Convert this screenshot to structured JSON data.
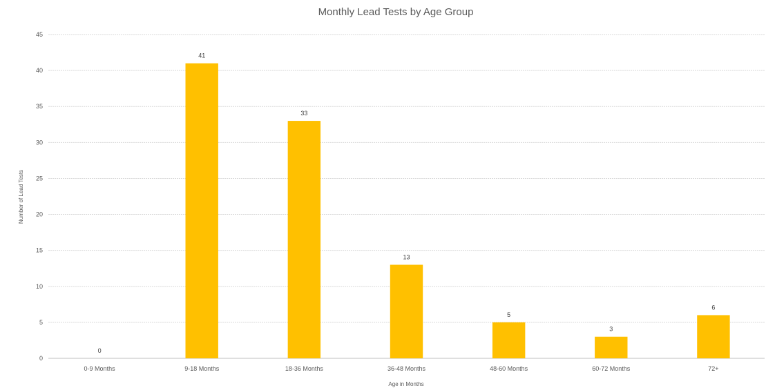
{
  "chart_data": {
    "type": "bar",
    "title": "Monthly Lead Tests by Age Group",
    "xlabel": "Age  in Months",
    "ylabel": "Number of Lead Tests",
    "categories": [
      "0-9 Months",
      "9-18 Months",
      "18-36 Months",
      "36-48 Months",
      "48-60 Months",
      "60-72 Months",
      "72+"
    ],
    "values": [
      0,
      41,
      33,
      13,
      5,
      3,
      6
    ],
    "ylim": [
      0,
      45
    ],
    "yticks": [
      0,
      5,
      10,
      15,
      20,
      25,
      30,
      35,
      40,
      45
    ],
    "grid": true,
    "legend": "none",
    "bar_color": "#FFC000"
  }
}
